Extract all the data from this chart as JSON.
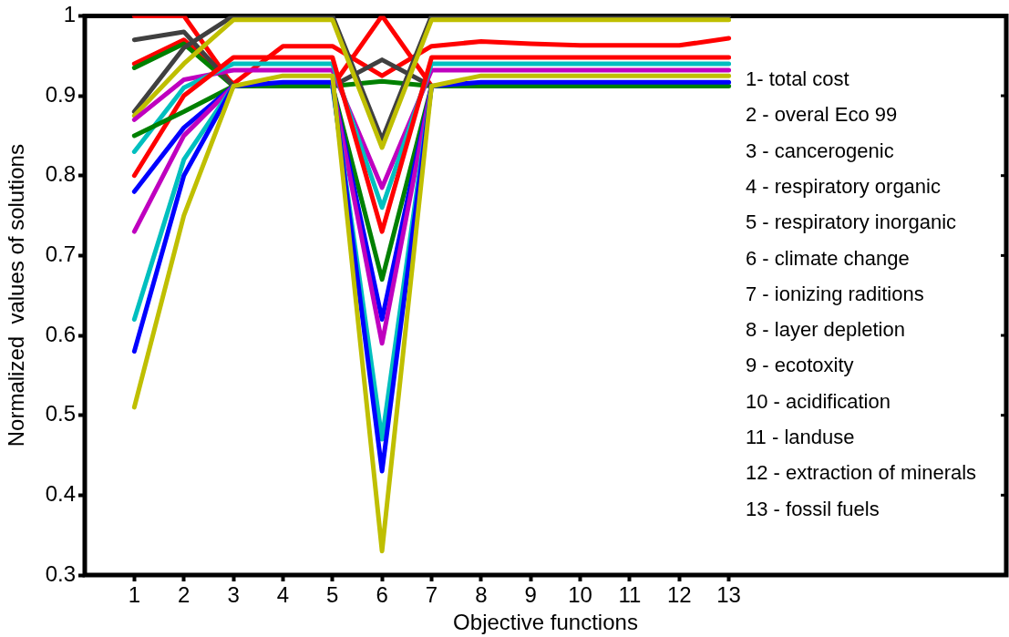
{
  "chart_data": {
    "type": "line",
    "xlabel": "Objective functions",
    "ylabel": "Normalized  values of solutions",
    "x": [
      1,
      2,
      3,
      4,
      5,
      6,
      7,
      8,
      9,
      10,
      11,
      12,
      13
    ],
    "xlim": [
      0,
      18.6
    ],
    "xticks": [
      1,
      2,
      3,
      4,
      5,
      6,
      7,
      8,
      9,
      10,
      11,
      12,
      13
    ],
    "ylim": [
      0.3,
      1
    ],
    "yticks": [
      0.3,
      0.4,
      0.5,
      0.6,
      0.7,
      0.8,
      0.9,
      1
    ],
    "grid": false,
    "legend": false,
    "marker": "none",
    "line_style": "solid",
    "annotations": [
      "1- total cost",
      "2 - overal Eco 99",
      "3 - cancerogenic",
      "4 - respiratory organic",
      "5 - respiratory inorganic",
      "6 - climate change",
      "7 - ionizing raditions",
      "8 - layer depletion",
      "9 - ecotoxity",
      "10 - acidification",
      "11 - landuse",
      "12 - extraction of minerals",
      "13 - fossil fuels"
    ],
    "series": [
      {
        "color": "#bfbf00",
        "values": [
          0.51,
          0.75,
          0.912,
          0.925,
          0.925,
          0.33,
          0.912,
          0.925,
          0.925,
          0.925,
          0.925,
          0.925,
          0.925
        ]
      },
      {
        "color": "#0000ff",
        "values": [
          0.58,
          0.8,
          0.912,
          0.917,
          0.917,
          0.43,
          0.912,
          0.917,
          0.917,
          0.917,
          0.917,
          0.917,
          0.917
        ]
      },
      {
        "color": "#00bfbf",
        "values": [
          0.62,
          0.82,
          0.912,
          null,
          0.912,
          0.47,
          0.912,
          null,
          null,
          null,
          null,
          null,
          null
        ]
      },
      {
        "color": "#bf00bf",
        "values": [
          0.73,
          0.85,
          0.912,
          null,
          0.912,
          0.59,
          0.912,
          null,
          null,
          null,
          null,
          null,
          null
        ]
      },
      {
        "color": "#0000ff",
        "values": [
          0.78,
          0.86,
          0.912,
          null,
          0.912,
          0.62,
          0.912,
          null,
          null,
          null,
          null,
          null,
          null
        ]
      },
      {
        "color": "#008000",
        "values": [
          0.85,
          0.88,
          0.912,
          null,
          0.912,
          0.67,
          0.912,
          null,
          null,
          null,
          null,
          null,
          null
        ]
      },
      {
        "color": "#ff0000",
        "values": [
          0.8,
          0.9,
          0.948,
          0.948,
          0.948,
          0.73,
          0.948,
          0.948,
          0.948,
          0.948,
          0.948,
          0.948,
          0.948
        ]
      },
      {
        "color": "#00bfbf",
        "values": [
          0.83,
          0.91,
          0.94,
          0.94,
          0.94,
          0.76,
          0.94,
          0.94,
          0.94,
          0.94,
          0.94,
          0.94,
          0.94
        ]
      },
      {
        "color": "#bf00bf",
        "values": [
          0.87,
          0.92,
          0.932,
          0.932,
          0.932,
          0.785,
          0.932,
          0.932,
          0.932,
          0.932,
          0.932,
          0.932,
          0.932
        ]
      },
      {
        "color": "#bfbf00",
        "values": [
          0.875,
          0.94,
          0.995,
          0.995,
          0.995,
          0.835,
          0.995,
          0.995,
          0.995,
          0.995,
          0.995,
          0.995,
          0.995
        ]
      },
      {
        "color": "#404040",
        "values": [
          0.88,
          0.96,
          1,
          1,
          1,
          0.845,
          1,
          1,
          1,
          1,
          1,
          1,
          1
        ]
      },
      {
        "color": "#404040",
        "values": [
          0.97,
          0.98,
          0.912,
          null,
          0.912,
          0.945,
          0.912,
          null,
          null,
          null,
          null,
          null,
          null
        ]
      },
      {
        "color": "#008000",
        "values": [
          0.935,
          0.965,
          0.912,
          0.912,
          0.912,
          0.918,
          0.912,
          0.912,
          0.912,
          0.912,
          0.912,
          0.912,
          0.912
        ]
      },
      {
        "color": "#ff0000",
        "values": [
          0.94,
          0.97,
          0.915,
          0.962,
          0.962,
          0.925,
          0.962,
          0.968,
          0.965,
          0.963,
          0.963,
          0.963,
          0.972
        ]
      },
      {
        "color": "#ff0000",
        "values": [
          1,
          1,
          0.912,
          null,
          0.912,
          1,
          0.912,
          null,
          null,
          null,
          null,
          null,
          null
        ]
      }
    ]
  }
}
